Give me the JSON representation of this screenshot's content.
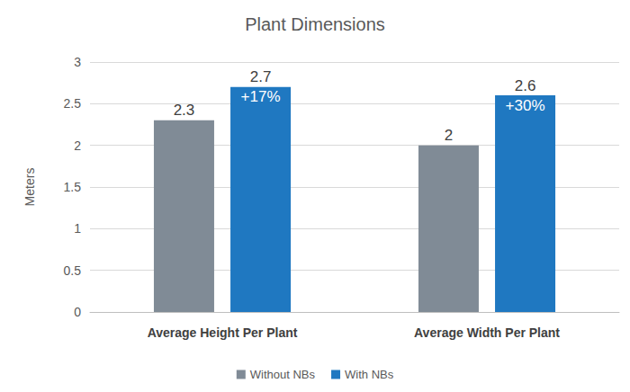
{
  "chart_data": {
    "type": "bar",
    "title": "Plant Dimensions",
    "y_label": "Meters",
    "categories": [
      "Average Height Per Plant",
      "Average Width Per Plant"
    ],
    "series": [
      {
        "name": "Without NBs",
        "color": "#808b96",
        "values": [
          2.3,
          2
        ]
      },
      {
        "name": "With NBs",
        "color": "#1f78c1",
        "values": [
          2.7,
          2.6
        ],
        "annotations": [
          "+17%",
          "+30%"
        ]
      }
    ],
    "ylim": [
      0,
      3
    ],
    "yticks": [
      0,
      0.5,
      1,
      1.5,
      2,
      2.5,
      3
    ],
    "grid": true,
    "legend": "bottom",
    "data_labels": true
  }
}
